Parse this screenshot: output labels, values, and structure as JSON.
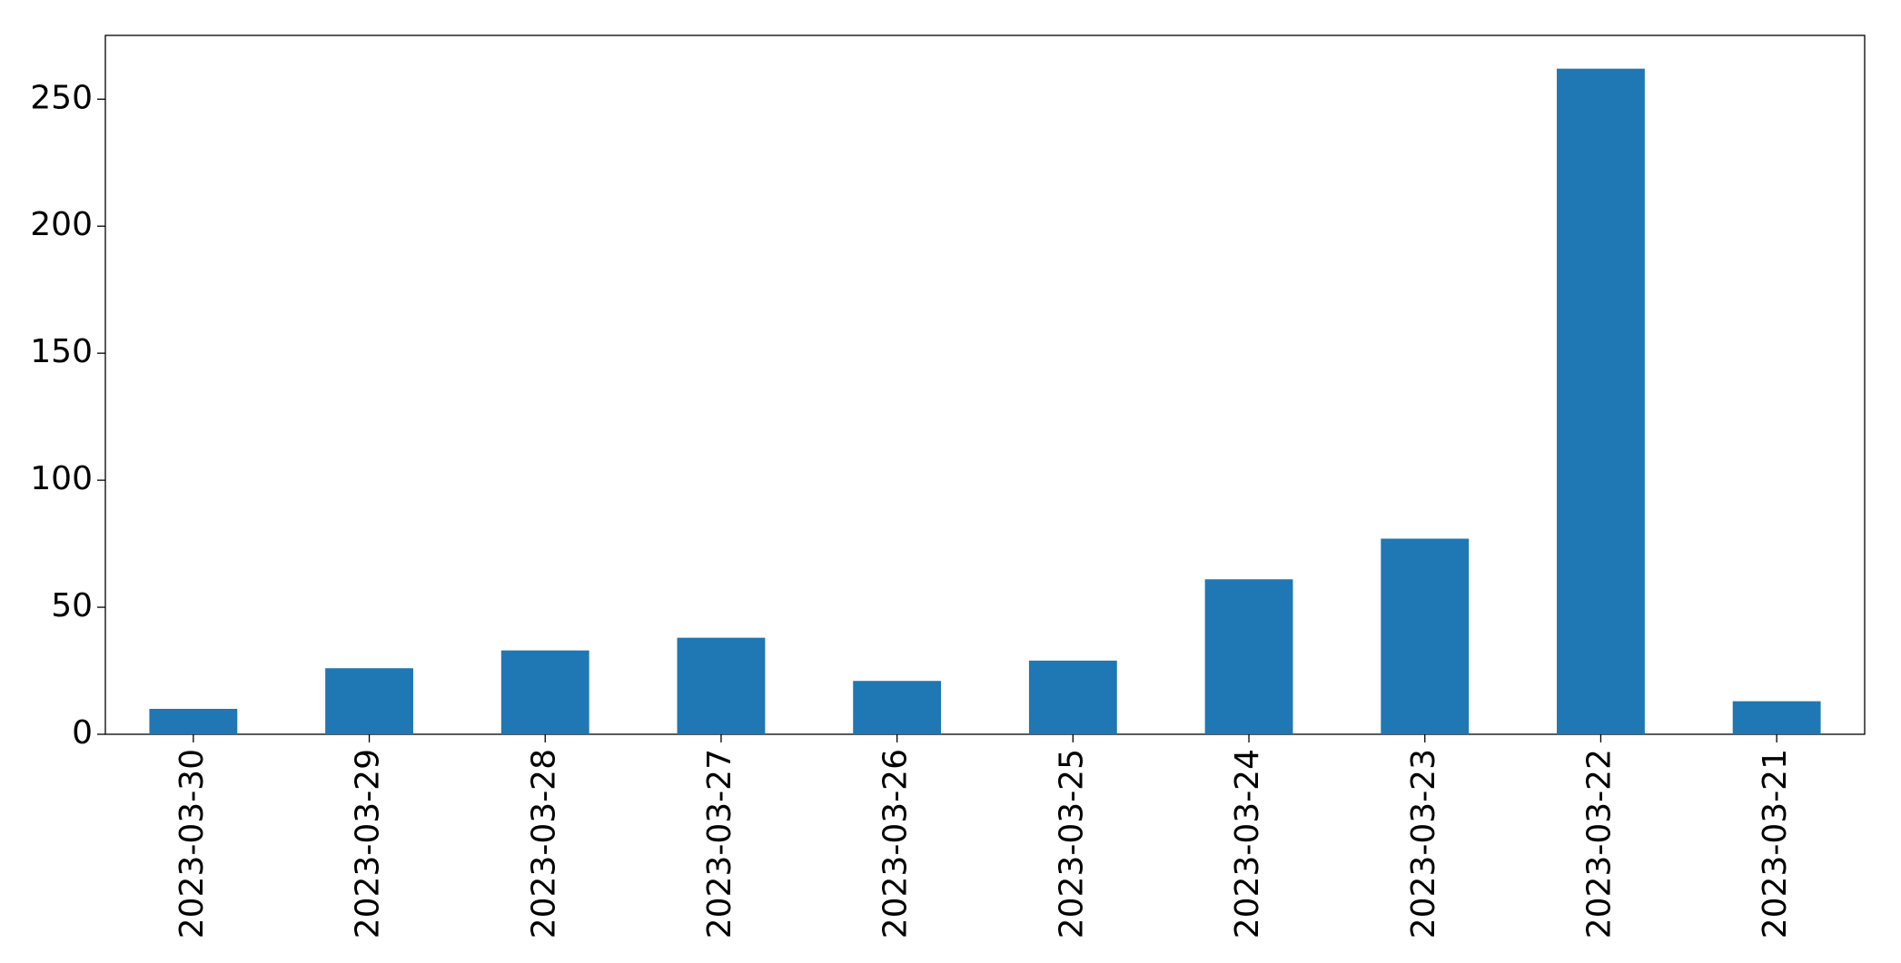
{
  "chart_data": {
    "type": "bar",
    "categories": [
      "2023-03-30",
      "2023-03-29",
      "2023-03-28",
      "2023-03-27",
      "2023-03-26",
      "2023-03-25",
      "2023-03-24",
      "2023-03-23",
      "2023-03-22",
      "2023-03-21"
    ],
    "values": [
      10,
      26,
      33,
      38,
      21,
      29,
      61,
      77,
      262,
      13
    ],
    "color": "#1f77b4",
    "ylim": [
      0,
      275.1
    ],
    "yticks": [
      0,
      50,
      100,
      150,
      200,
      250
    ],
    "grid": false
  }
}
